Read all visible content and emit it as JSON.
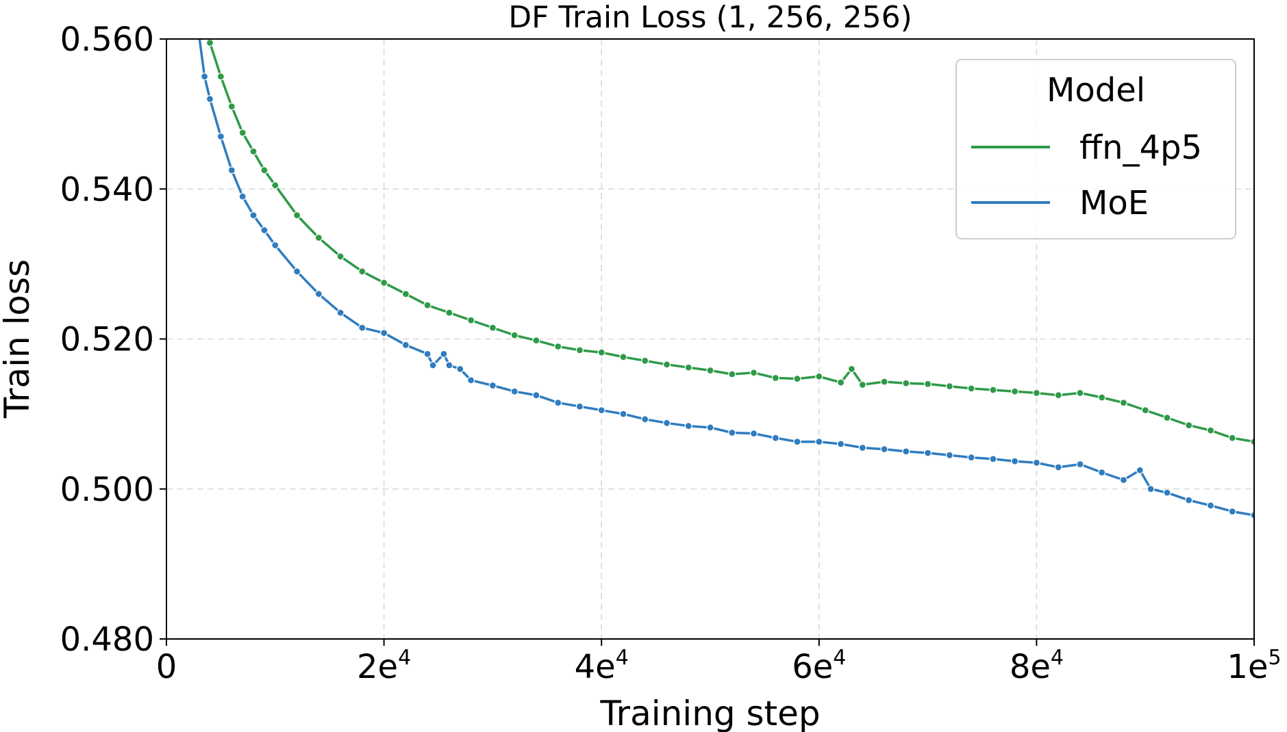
{
  "chart_data": {
    "type": "line",
    "title": "DF Train Loss (1, 256, 256)",
    "xlabel": "Training step",
    "ylabel": "Train loss",
    "xlim": [
      0,
      100000
    ],
    "ylim": [
      0.48,
      0.56
    ],
    "grid": true,
    "grid_style": "dashed",
    "markers": "small circles on every point",
    "x_ticks": [
      {
        "value": 0,
        "base": "0",
        "sup": ""
      },
      {
        "value": 20000,
        "base": "2e",
        "sup": "4"
      },
      {
        "value": 40000,
        "base": "4e",
        "sup": "4"
      },
      {
        "value": 60000,
        "base": "6e",
        "sup": "4"
      },
      {
        "value": 80000,
        "base": "8e",
        "sup": "4"
      },
      {
        "value": 100000,
        "base": "1e",
        "sup": "5"
      }
    ],
    "y_ticks": [
      {
        "value": 0.48,
        "label": "0.480"
      },
      {
        "value": 0.5,
        "label": "0.500"
      },
      {
        "value": 0.52,
        "label": "0.520"
      },
      {
        "value": 0.54,
        "label": "0.540"
      },
      {
        "value": 0.56,
        "label": "0.560"
      }
    ],
    "legend": {
      "title": "Model",
      "position": "top-right"
    },
    "series": [
      {
        "name": "ffn_4p5",
        "color": "#2e9a48",
        "x": [
          3500,
          4000,
          5000,
          6000,
          7000,
          8000,
          9000,
          10000,
          12000,
          14000,
          16000,
          18000,
          20000,
          22000,
          24000,
          26000,
          28000,
          30000,
          32000,
          34000,
          36000,
          38000,
          40000,
          42000,
          44000,
          46000,
          48000,
          50000,
          52000,
          54000,
          56000,
          58000,
          60000,
          62000,
          63000,
          64000,
          66000,
          68000,
          70000,
          72000,
          74000,
          76000,
          78000,
          80000,
          82000,
          84000,
          86000,
          88000,
          90000,
          92000,
          94000,
          96000,
          98000,
          100000
        ],
        "values": [
          0.562,
          0.5595,
          0.555,
          0.551,
          0.5475,
          0.545,
          0.5425,
          0.5405,
          0.5365,
          0.5335,
          0.531,
          0.529,
          0.5275,
          0.526,
          0.5245,
          0.5235,
          0.5225,
          0.5215,
          0.5205,
          0.5198,
          0.519,
          0.5185,
          0.5182,
          0.5176,
          0.5171,
          0.5166,
          0.5162,
          0.5158,
          0.5153,
          0.5155,
          0.5148,
          0.5147,
          0.515,
          0.5142,
          0.516,
          0.5139,
          0.5143,
          0.5141,
          0.514,
          0.5137,
          0.5134,
          0.5132,
          0.513,
          0.5128,
          0.5125,
          0.5128,
          0.5122,
          0.5115,
          0.5105,
          0.5095,
          0.5085,
          0.5078,
          0.5068,
          0.5063
        ]
      },
      {
        "name": "MoE",
        "color": "#2f7cbf",
        "x": [
          3000,
          3500,
          4000,
          5000,
          6000,
          7000,
          8000,
          9000,
          10000,
          12000,
          14000,
          16000,
          18000,
          20000,
          22000,
          24000,
          24500,
          25500,
          26000,
          27000,
          28000,
          30000,
          32000,
          34000,
          36000,
          38000,
          40000,
          42000,
          44000,
          46000,
          48000,
          50000,
          52000,
          54000,
          56000,
          58000,
          60000,
          62000,
          64000,
          66000,
          68000,
          70000,
          72000,
          74000,
          76000,
          78000,
          80000,
          82000,
          84000,
          86000,
          88000,
          89500,
          90500,
          92000,
          94000,
          96000,
          98000,
          100000
        ],
        "values": [
          0.5605,
          0.555,
          0.552,
          0.547,
          0.5425,
          0.539,
          0.5365,
          0.5345,
          0.5325,
          0.529,
          0.526,
          0.5235,
          0.5215,
          0.5208,
          0.5192,
          0.518,
          0.5165,
          0.518,
          0.5165,
          0.516,
          0.5145,
          0.5138,
          0.513,
          0.5125,
          0.5115,
          0.511,
          0.5105,
          0.51,
          0.5093,
          0.5088,
          0.5084,
          0.5082,
          0.5075,
          0.5074,
          0.5068,
          0.5063,
          0.5063,
          0.506,
          0.5055,
          0.5053,
          0.505,
          0.5048,
          0.5045,
          0.5042,
          0.504,
          0.5037,
          0.5035,
          0.5029,
          0.5033,
          0.5022,
          0.5012,
          0.5025,
          0.5,
          0.4995,
          0.4985,
          0.4978,
          0.497,
          0.4965
        ]
      }
    ]
  }
}
